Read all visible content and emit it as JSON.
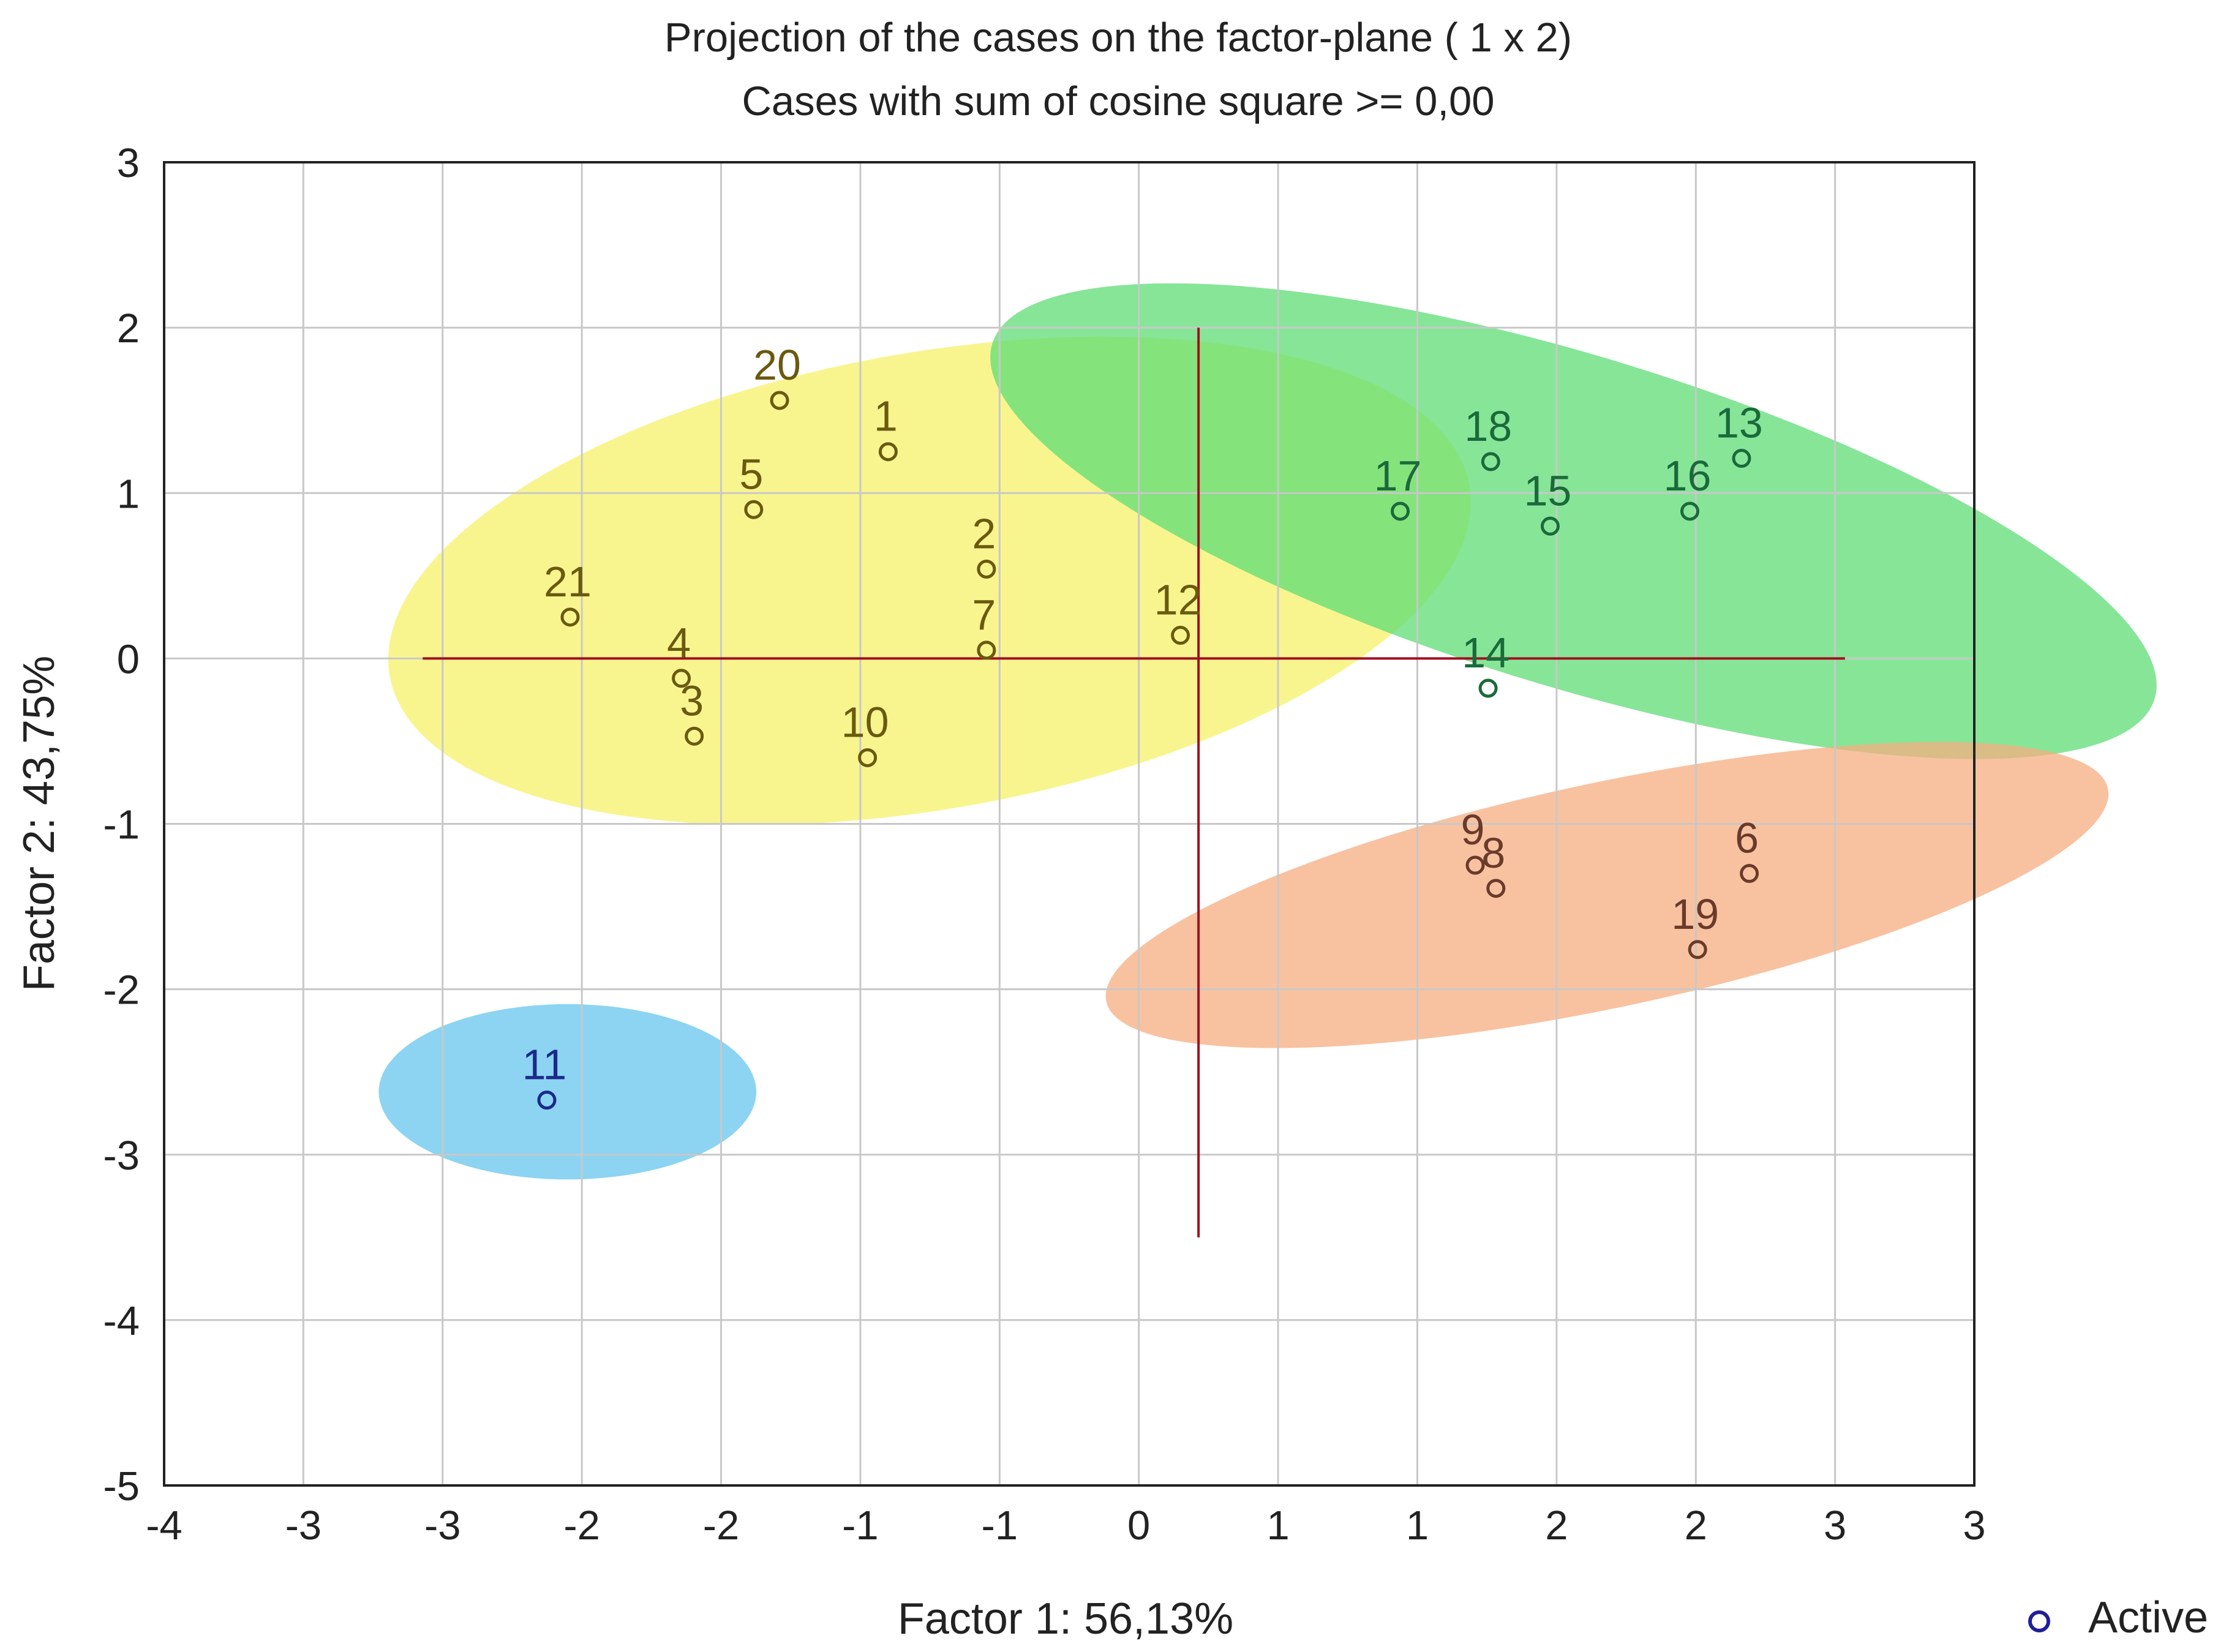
{
  "chart_data": {
    "type": "scatter",
    "title": "Projection of the cases on the factor-plane (  1 x   2)",
    "subtitle": "Cases with sum of cosine square >=  0,00",
    "xlabel": "Factor 1: 56,13%",
    "ylabel": "Factor 2: 43,75%",
    "xlim": [
      -4,
      3
    ],
    "ylim": [
      -5,
      3
    ],
    "x_tick_labels": [
      "-4",
      "-3",
      "-3",
      "-2",
      "-2",
      "-1",
      "-1",
      "0",
      "1",
      "1",
      "2",
      "2",
      "3",
      "3"
    ],
    "y_tick_labels": [
      "3",
      "2",
      "1",
      "0",
      "-1",
      "-2",
      "-3",
      "-4",
      "-5"
    ],
    "grid": true,
    "legend": {
      "position": "bottom-right",
      "label": "Active",
      "marker_color": "#1f1f9a"
    },
    "points": [
      {
        "label": "1",
        "x": -1.2,
        "y": 1.25,
        "group": "yellow"
      },
      {
        "label": "2",
        "x": -0.82,
        "y": 0.54,
        "group": "yellow"
      },
      {
        "label": "3",
        "x": -1.95,
        "y": -0.47,
        "group": "yellow"
      },
      {
        "label": "4",
        "x": -2.0,
        "y": -0.12,
        "group": "yellow"
      },
      {
        "label": "5",
        "x": -1.72,
        "y": 0.9,
        "group": "yellow"
      },
      {
        "label": "6",
        "x": 2.13,
        "y": -1.3,
        "group": "orange"
      },
      {
        "label": "7",
        "x": -0.82,
        "y": 0.05,
        "group": "yellow"
      },
      {
        "label": "8",
        "x": 1.15,
        "y": -1.39,
        "group": "orange"
      },
      {
        "label": "9",
        "x": 1.07,
        "y": -1.25,
        "group": "orange"
      },
      {
        "label": "10",
        "x": -1.28,
        "y": -0.6,
        "group": "yellow"
      },
      {
        "label": "11",
        "x": -2.52,
        "y": -2.67,
        "group": "blue"
      },
      {
        "label": "12",
        "x": -0.07,
        "y": 0.14,
        "group": "yellow-green"
      },
      {
        "label": "13",
        "x": 2.1,
        "y": 1.21,
        "group": "green"
      },
      {
        "label": "14",
        "x": 1.12,
        "y": -0.18,
        "group": "green"
      },
      {
        "label": "15",
        "x": 1.36,
        "y": 0.8,
        "group": "green"
      },
      {
        "label": "16",
        "x": 1.9,
        "y": 0.89,
        "group": "green"
      },
      {
        "label": "17",
        "x": 0.78,
        "y": 0.89,
        "group": "green"
      },
      {
        "label": "18",
        "x": 1.13,
        "y": 1.19,
        "group": "green"
      },
      {
        "label": "19",
        "x": 1.93,
        "y": -1.76,
        "group": "orange"
      },
      {
        "label": "20",
        "x": -1.62,
        "y": 1.56,
        "group": "yellow"
      },
      {
        "label": "21",
        "x": -2.43,
        "y": 0.25,
        "group": "yellow"
      }
    ],
    "clusters": [
      {
        "name": "yellow",
        "color": "#f5f26a",
        "cx": -1.04,
        "cy": 0.47,
        "rx": 2.12,
        "ry": 1.38,
        "angle": -10
      },
      {
        "name": "green",
        "color": "#5fdc76",
        "cx": 1.45,
        "cy": 0.83,
        "rx": 2.35,
        "ry": 1.0,
        "angle": 17
      },
      {
        "name": "orange",
        "color": "#f6ad80",
        "cx": 1.58,
        "cy": -1.43,
        "rx": 1.98,
        "ry": 0.68,
        "angle": -12
      },
      {
        "name": "blue",
        "color": "#66c6ee",
        "cx": -2.44,
        "cy": -2.62,
        "rx": 0.73,
        "ry": 0.53,
        "angle": 0
      }
    ],
    "colors": {
      "reference_lines": "#a01020",
      "grid": "#c8c8c8",
      "yellow_text": "#6a5a10",
      "green_text": "#1a6a3a",
      "orange_text": "#6a3a2a",
      "blue_text": "#1a2a8a"
    }
  }
}
